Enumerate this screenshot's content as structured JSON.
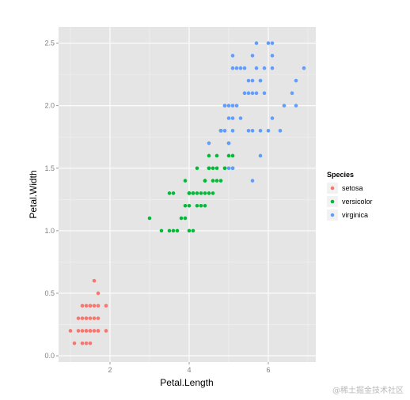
{
  "watermark": "@稀土掘金技术社区",
  "chart_data": {
    "type": "scatter",
    "xlabel": "Petal.Length",
    "ylabel": "Petal.Width",
    "xlim": [
      0.7,
      7.2
    ],
    "ylim": [
      -0.05,
      2.63
    ],
    "x_ticks": [
      2,
      4,
      6
    ],
    "x_tick_labels": [
      "2",
      "4",
      "6"
    ],
    "y_ticks": [
      0,
      0.5,
      1,
      1.5,
      2,
      2.5
    ],
    "y_tick_labels": [
      "0.0",
      "0.5",
      "1.0",
      "1.5",
      "2.0",
      "2.5"
    ],
    "grid": true,
    "legend": {
      "title": "Species",
      "position": "right"
    },
    "colors": {
      "setosa": "#F8766D",
      "versicolor": "#00BA38",
      "virginica": "#619CFF",
      "panel": "#E5E5E5",
      "grid": "#FFFFFF"
    },
    "series": [
      {
        "name": "setosa",
        "x": [
          1.0,
          1.1,
          1.2,
          1.2,
          1.3,
          1.3,
          1.3,
          1.3,
          1.4,
          1.4,
          1.4,
          1.4,
          1.4,
          1.4,
          1.5,
          1.5,
          1.5,
          1.5,
          1.5,
          1.5,
          1.6,
          1.6,
          1.6,
          1.6,
          1.7,
          1.7,
          1.7,
          1.7,
          1.7,
          1.9,
          1.9
        ],
        "y": [
          0.2,
          0.1,
          0.2,
          0.3,
          0.2,
          0.3,
          0.4,
          0.1,
          0.2,
          0.3,
          0.4,
          0.1,
          0.2,
          0.3,
          0.2,
          0.4,
          0.1,
          0.3,
          0.2,
          0.4,
          0.2,
          0.4,
          0.6,
          0.3,
          0.2,
          0.3,
          0.5,
          0.4,
          0.2,
          0.2,
          0.4
        ]
      },
      {
        "name": "versicolor",
        "x": [
          3.0,
          3.3,
          3.5,
          3.6,
          3.5,
          3.7,
          3.8,
          3.9,
          3.9,
          3.9,
          4.0,
          4.0,
          4.0,
          4.0,
          4.1,
          4.1,
          4.1,
          4.2,
          4.2,
          4.3,
          4.3,
          4.4,
          4.4,
          4.4,
          4.5,
          4.5,
          4.5,
          4.5,
          4.6,
          4.6,
          4.6,
          4.7,
          4.7,
          4.7,
          4.8,
          4.8,
          4.9,
          4.9,
          5.0,
          5.0,
          5.1,
          5.1,
          4.2,
          4.0,
          3.6,
          4.4,
          4.8,
          4.5
        ],
        "y": [
          1.1,
          1.0,
          1.0,
          1.0,
          1.3,
          1.0,
          1.1,
          1.1,
          1.2,
          1.4,
          1.0,
          1.2,
          1.3,
          1.3,
          1.0,
          1.3,
          1.3,
          1.3,
          1.5,
          1.3,
          1.2,
          1.2,
          1.3,
          1.4,
          1.3,
          1.5,
          1.5,
          1.6,
          1.3,
          1.4,
          1.5,
          1.4,
          1.5,
          1.6,
          1.8,
          1.4,
          1.5,
          1.5,
          1.7,
          1.6,
          1.5,
          1.6,
          1.2,
          1.3,
          1.3,
          1.4,
          1.8,
          1.5
        ]
      },
      {
        "name": "virginica",
        "x": [
          4.5,
          4.8,
          4.9,
          4.9,
          5.0,
          5.0,
          5.0,
          5.1,
          5.1,
          5.1,
          5.1,
          5.1,
          5.1,
          5.2,
          5.2,
          5.3,
          5.3,
          5.4,
          5.4,
          5.5,
          5.5,
          5.5,
          5.6,
          5.6,
          5.6,
          5.6,
          5.7,
          5.7,
          5.7,
          5.8,
          5.8,
          5.8,
          5.9,
          5.9,
          6.0,
          6.0,
          6.1,
          6.1,
          6.1,
          6.3,
          6.4,
          6.6,
          6.7,
          6.7,
          6.9,
          5.6,
          5.8,
          6.1,
          5.0,
          4.9
        ],
        "y": [
          1.7,
          1.8,
          1.8,
          2.0,
          1.5,
          2.0,
          1.9,
          1.5,
          1.8,
          2.0,
          2.3,
          2.4,
          1.9,
          2.0,
          2.3,
          1.9,
          2.3,
          2.1,
          2.3,
          1.8,
          2.1,
          2.2,
          1.4,
          1.8,
          2.1,
          2.4,
          2.1,
          2.3,
          2.5,
          1.6,
          1.8,
          2.2,
          2.1,
          2.3,
          1.8,
          2.5,
          1.9,
          2.3,
          2.5,
          1.8,
          2.0,
          2.1,
          2.0,
          2.2,
          2.3,
          2.2,
          2.2,
          2.4,
          1.7,
          2.0
        ]
      }
    ]
  }
}
